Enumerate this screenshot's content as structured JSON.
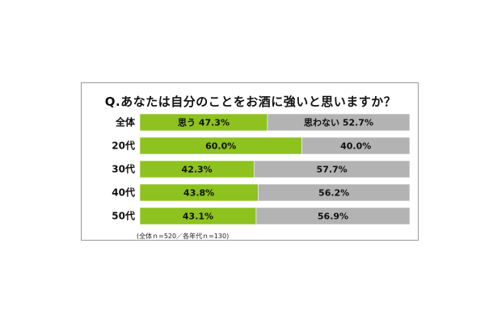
{
  "chart_data": {
    "type": "bar",
    "orientation": "horizontal-stacked-100",
    "title": "Q.あなたは自分のことをお酒に強いと思いますか？",
    "note": "(全体ｎ=520／各年代ｎ=130)",
    "categories": [
      "全体",
      "20代",
      "30代",
      "40代",
      "50代"
    ],
    "series": [
      {
        "name": "思う",
        "color": "#8dc21f",
        "values": [
          47.3,
          60.0,
          42.3,
          43.8,
          43.1
        ],
        "labels": [
          "思う 47.3%",
          "60.0%",
          "42.3%",
          "43.8%",
          "43.1%"
        ]
      },
      {
        "name": "思わない",
        "color": "#b3b3b3",
        "values": [
          52.7,
          40.0,
          57.7,
          56.2,
          56.9
        ],
        "labels": [
          "思わない 52.7%",
          "40.0%",
          "57.7%",
          "56.2%",
          "56.9%"
        ]
      }
    ],
    "xlim": [
      0,
      100
    ],
    "grid": false,
    "legend": "inline"
  }
}
